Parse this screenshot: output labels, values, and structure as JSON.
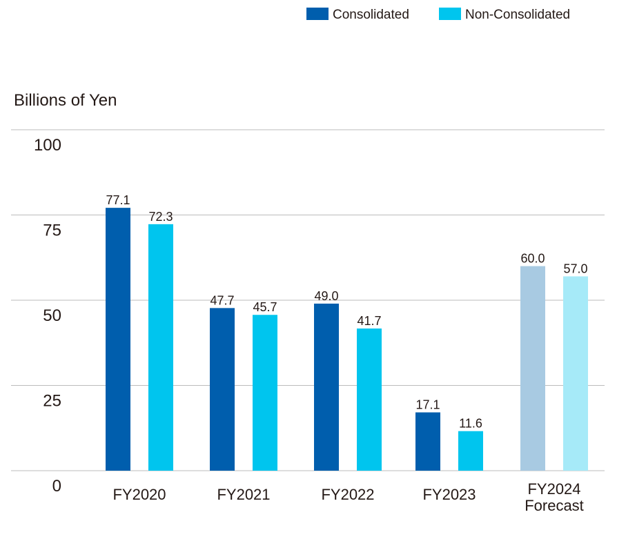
{
  "chart_data": {
    "type": "bar",
    "ylabel": "Billions of Yen",
    "ylim": [
      0,
      100
    ],
    "yticks": [
      0,
      25,
      50,
      75,
      100
    ],
    "grid": true,
    "legend_position": "top-right",
    "categories": [
      [
        "FY2020"
      ],
      [
        "FY2021"
      ],
      [
        "FY2022"
      ],
      [
        "FY2023"
      ],
      [
        "FY2024",
        "Forecast"
      ]
    ],
    "series": [
      {
        "name": "Consolidated",
        "values": [
          77.1,
          47.7,
          49.0,
          17.1,
          60.0
        ],
        "labels": [
          "77.1",
          "47.7",
          "49.0",
          "17.1",
          "60.0"
        ],
        "color": "#005EAD",
        "forecast_color": "#A8CAE2"
      },
      {
        "name": "Non-Consolidated",
        "values": [
          72.3,
          45.7,
          41.7,
          11.6,
          57.0
        ],
        "labels": [
          "72.3",
          "45.7",
          "41.7",
          "11.6",
          "57.0"
        ],
        "color": "#00C5EE",
        "forecast_color": "#A6EAF8"
      }
    ],
    "forecast_index": 4,
    "grid_color": "#BBBBBB"
  }
}
